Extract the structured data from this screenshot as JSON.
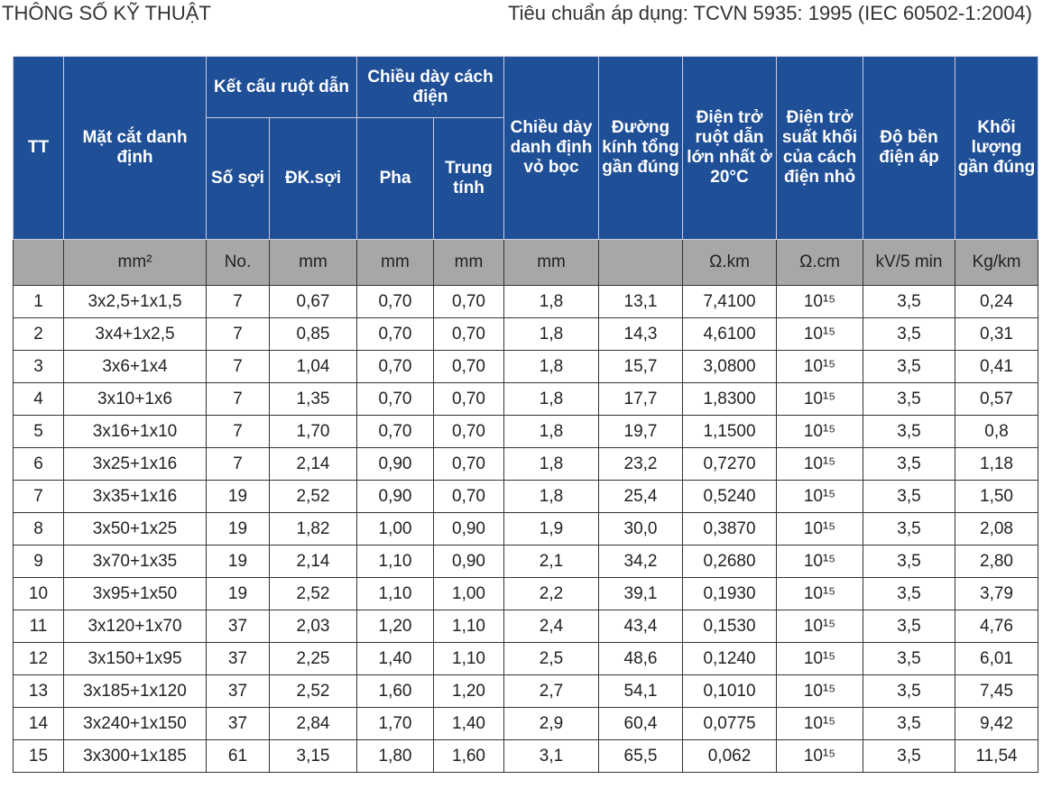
{
  "header": {
    "title": "THÔNG SỐ KỸ THUẬT",
    "standard": "Tiêu chuẩn áp dụng: TCVN 5935: 1995 (IEC 60502-1:2004)"
  },
  "table": {
    "headers": [
      "TT",
      "Mặt cắt danh định",
      "Kết cấu ruột dẫn",
      "Chiều dày cách điện",
      "Chiều dày danh định vỏ bọc",
      "Đường kính tổng gần đúng",
      "Điện trở ruột dẫn lớn nhất ở 20°C",
      "Điện trở suất khối của cách điện nhỏ",
      "Độ bền điện áp",
      "Khối lượng gần đúng"
    ],
    "subheaders": [
      "Số sợi",
      "ĐK.sợi",
      "Pha",
      "Trung tính"
    ],
    "units": [
      null,
      "mm²",
      "No.",
      "mm",
      "mm",
      "mm",
      "mm",
      null,
      "Ω.km",
      "Ω.cm",
      "kV/5 min",
      "Kg/km"
    ],
    "rows": [
      [
        "1",
        "3x2,5+1x1,5",
        "7",
        "0,67",
        "0,70",
        "0,70",
        "1,8",
        "13,1",
        "7,4100",
        "10¹⁵",
        "3,5",
        "0,24"
      ],
      [
        "2",
        "3x4+1x2,5",
        "7",
        "0,85",
        "0,70",
        "0,70",
        "1,8",
        "14,3",
        "4,6100",
        "10¹⁵",
        "3,5",
        "0,31"
      ],
      [
        "3",
        "3x6+1x4",
        "7",
        "1,04",
        "0,70",
        "0,70",
        "1,8",
        "15,7",
        "3,0800",
        "10¹⁵",
        "3,5",
        "0,41"
      ],
      [
        "4",
        "3x10+1x6",
        "7",
        "1,35",
        "0,70",
        "0,70",
        "1,8",
        "17,7",
        "1,8300",
        "10¹⁵",
        "3,5",
        "0,57"
      ],
      [
        "5",
        "3x16+1x10",
        "7",
        "1,70",
        "0,70",
        "0,70",
        "1,8",
        "19,7",
        "1,1500",
        "10¹⁵",
        "3,5",
        "0,8"
      ],
      [
        "6",
        "3x25+1x16",
        "7",
        "2,14",
        "0,90",
        "0,70",
        "1,8",
        "23,2",
        "0,7270",
        "10¹⁵",
        "3,5",
        "1,18"
      ],
      [
        "7",
        "3x35+1x16",
        "19",
        "2,52",
        "0,90",
        "0,70",
        "1,8",
        "25,4",
        "0,5240",
        "10¹⁵",
        "3,5",
        "1,50"
      ],
      [
        "8",
        "3x50+1x25",
        "19",
        "1,82",
        "1,00",
        "0,90",
        "1,9",
        "30,0",
        "0,3870",
        "10¹⁵",
        "3,5",
        "2,08"
      ],
      [
        "9",
        "3x70+1x35",
        "19",
        "2,14",
        "1,10",
        "0,90",
        "2,1",
        "34,2",
        "0,2680",
        "10¹⁵",
        "3,5",
        "2,80"
      ],
      [
        "10",
        "3x95+1x50",
        "19",
        "2,52",
        "1,10",
        "1,00",
        "2,2",
        "39,1",
        "0,1930",
        "10¹⁵",
        "3,5",
        "3,79"
      ],
      [
        "11",
        "3x120+1x70",
        "37",
        "2,03",
        "1,20",
        "1,10",
        "2,4",
        "43,4",
        "0,1530",
        "10¹⁵",
        "3,5",
        "4,76"
      ],
      [
        "12",
        "3x150+1x95",
        "37",
        "2,25",
        "1,40",
        "1,10",
        "2,5",
        "48,6",
        "0,1240",
        "10¹⁵",
        "3,5",
        "6,01"
      ],
      [
        "13",
        "3x185+1x120",
        "37",
        "2,52",
        "1,60",
        "1,20",
        "2,7",
        "54,1",
        "0,1010",
        "10¹⁵",
        "3,5",
        "7,45"
      ],
      [
        "14",
        "3x240+1x150",
        "37",
        "2,84",
        "1,70",
        "1,40",
        "2,9",
        "60,4",
        "0,0775",
        "10¹⁵",
        "3,5",
        "9,42"
      ],
      [
        "15",
        "3x300+1x185",
        "61",
        "3,15",
        "1,80",
        "1,60",
        "3,1",
        "65,5",
        "0,062",
        "10¹⁵",
        "3,5",
        "11,54"
      ]
    ]
  }
}
